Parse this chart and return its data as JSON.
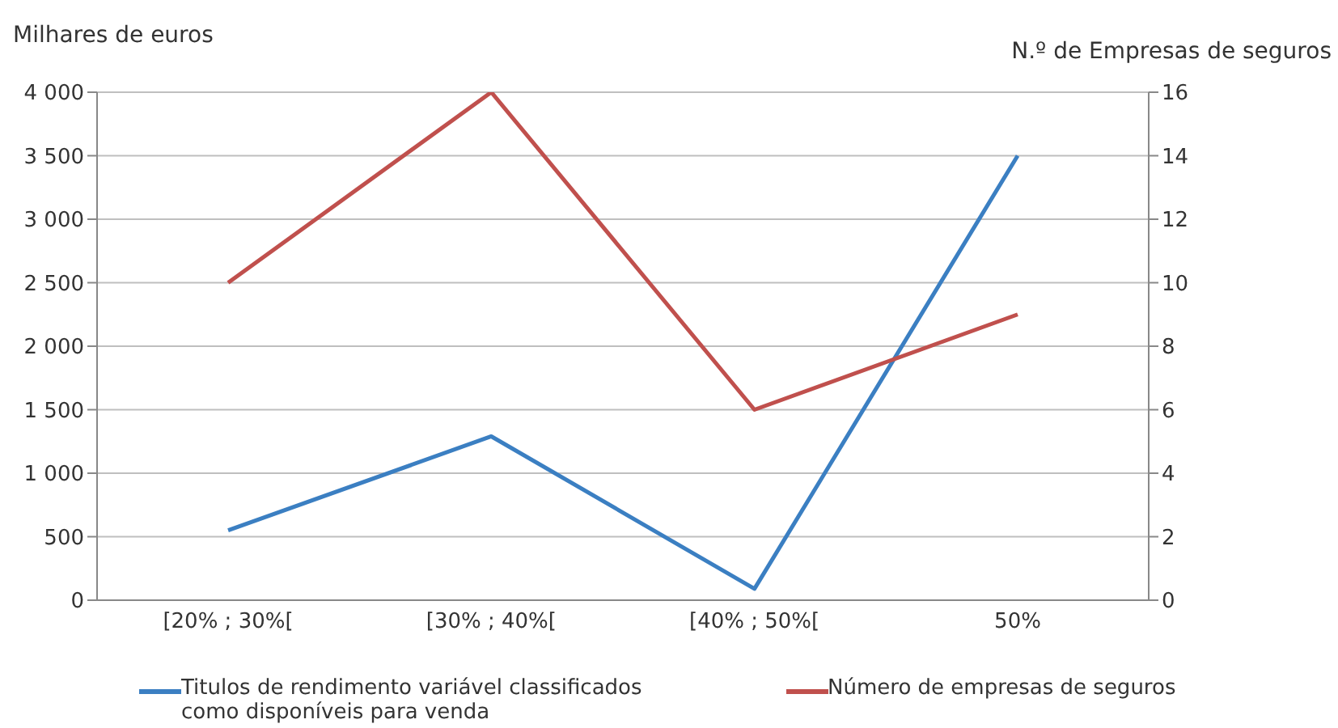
{
  "chart_data": {
    "type": "line",
    "ylabel": "Milhares de euros",
    "y2label": "N.º de Empresas de seguros",
    "categories": [
      "[20% ; 30%[",
      "[30% ; 40%[",
      "[40% ; 50%[",
      "50%"
    ],
    "series": [
      {
        "name": "Titulos de rendimento variável classificados como disponíveis para venda",
        "color": "#3b7fc2",
        "values": [
          550,
          1290,
          90,
          3500
        ]
      },
      {
        "name": "Número de empresas de seguros",
        "color": "#c0504d",
        "axis": "y2",
        "values": [
          10,
          16,
          6,
          9
        ]
      }
    ],
    "ylim": [
      0,
      4000
    ],
    "yticks": [
      0,
      {
        "value": 500,
        "label": "500"
      },
      {
        "value": 1000,
        "label": "1 000"
      },
      {
        "value": 1500,
        "label": "1 500"
      },
      {
        "value": 2000,
        "label": "2 000"
      },
      {
        "value": 2500,
        "label": "2 500"
      },
      {
        "value": 3000,
        "label": "3 000"
      },
      {
        "value": 3500,
        "label": "3 500"
      },
      {
        "value": 4000,
        "label": "4 000"
      }
    ],
    "y2lim": [
      0,
      16
    ],
    "y2ticks": [
      0,
      2,
      4,
      6,
      8,
      10,
      12,
      14,
      16
    ],
    "grid": "y",
    "legend": "bottom",
    "marker": "none",
    "line_style": "solid"
  }
}
